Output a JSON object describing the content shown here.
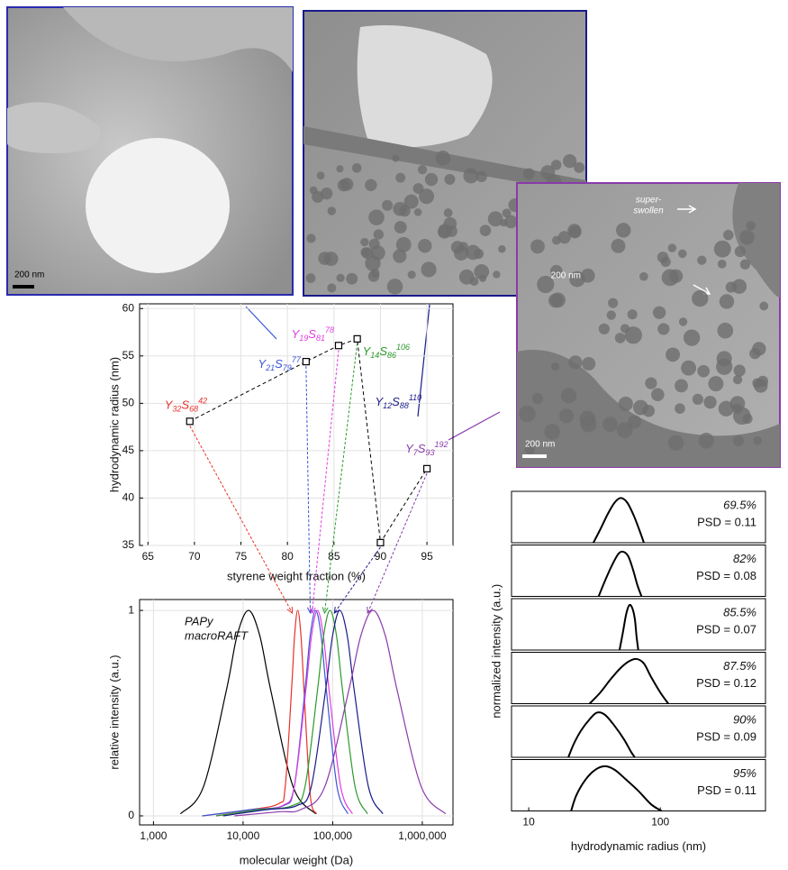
{
  "micrographs": [
    {
      "scale_bar": "200 nm"
    },
    {
      "scale_bar": "200 nm"
    },
    {
      "scale_bar": "200 nm",
      "annotation": [
        "super-",
        "swollen"
      ]
    }
  ],
  "chart_data": [
    {
      "type": "scatter",
      "xlabel": "styrene weight fraction (%)",
      "ylabel": "hydrodynamic radius (nm)",
      "x": [
        69.5,
        82,
        85.5,
        87.5,
        90,
        95
      ],
      "values": [
        48.1,
        54.4,
        56.1,
        56.8,
        35.3,
        43.1
      ],
      "point_labels": [
        [
          "Y",
          "32",
          "S",
          "68",
          "42"
        ],
        [
          "Y",
          "21",
          "S",
          "79",
          "77"
        ],
        [
          "Y",
          "19",
          "S",
          "81",
          "78"
        ],
        [
          "Y",
          "14",
          "S",
          "86",
          "106"
        ],
        [
          "Y",
          "12",
          "S",
          "88",
          "110"
        ],
        [
          "Y",
          "7",
          "S",
          "93",
          "192"
        ]
      ],
      "label_colors": [
        "#e8312a",
        "#3a55d6",
        "#e03ce0",
        "#2a9a2a",
        "#1a1a8a",
        "#8a3aaa"
      ],
      "color": "#000000",
      "xlim": [
        64.1,
        97.8
      ],
      "xticks": [
        65,
        70,
        75,
        80,
        85,
        90,
        95
      ],
      "ylim": [
        35,
        60.5
      ],
      "yticks": [
        35,
        40,
        45,
        50,
        55,
        60
      ],
      "grid": true
    },
    {
      "type": "line",
      "log_x": true,
      "xlabel": "molecular weight (Da)",
      "ylabel": "relative intensity (a.u.)",
      "annotation": [
        "PAPy",
        "macroRAFT"
      ],
      "xlim": [
        700,
        2200000
      ],
      "xticks": [
        {
          "value": 1000,
          "label": "1,000"
        },
        {
          "value": 10000,
          "label": "10,000"
        },
        {
          "value": 100000,
          "label": "100,000"
        },
        {
          "value": 1000000,
          "label": "1,000,000"
        }
      ],
      "ylim": [
        -0.044,
        1.053
      ],
      "yticks": [
        0,
        1
      ],
      "grid": true,
      "series": [
        {
          "color": "#000000",
          "x": [
            2000,
            3600,
            6500,
            8600,
            11500,
            15300,
            20400,
            36300,
            64600
          ],
          "values": [
            0.01,
            0.14,
            0.61,
            0.88,
            1,
            0.88,
            0.61,
            0.14,
            0.01
          ]
        },
        {
          "color": "#e8312a",
          "x": [
            3500,
            12000,
            25100,
            29500,
            34700,
            37600,
            40700,
            44200,
            47900,
            56200,
            66100
          ],
          "values": [
            0,
            0.03,
            0.06,
            0.14,
            0.61,
            0.88,
            1,
            0.88,
            0.61,
            0.1,
            0.01
          ]
        },
        {
          "color": "#3a55d6",
          "x": [
            3500,
            12000,
            28200,
            37200,
            49000,
            56200,
            64600,
            74100,
            85100,
            112000,
            148000
          ],
          "values": [
            0,
            0.03,
            0.05,
            0.14,
            0.61,
            0.88,
            1,
            0.88,
            0.61,
            0.14,
            0.01
          ]
        },
        {
          "color": "#e03ce0",
          "x": [
            5000,
            15000,
            27500,
            37200,
            50100,
            58200,
            67600,
            78500,
            91200,
            123000,
            166000
          ],
          "values": [
            0,
            0.03,
            0.05,
            0.14,
            0.61,
            0.88,
            1,
            0.88,
            0.61,
            0.14,
            0.01
          ]
        },
        {
          "color": "#2a9a2a",
          "x": [
            5000,
            15000,
            35500,
            49000,
            67600,
            79400,
            93300,
            110000,
            129000,
            178000,
            245000
          ],
          "values": [
            0,
            0.03,
            0.05,
            0.14,
            0.61,
            0.88,
            1,
            0.88,
            0.61,
            0.14,
            0.01
          ]
        },
        {
          "color": "#1a1a8a",
          "x": [
            6000,
            18000,
            39800,
            57500,
            83200,
            100000,
            120000,
            145000,
            174000,
            251000,
            363000
          ],
          "values": [
            0,
            0.03,
            0.05,
            0.14,
            0.61,
            0.88,
            1,
            0.88,
            0.61,
            0.14,
            0.01
          ]
        },
        {
          "color": "#8a3aaa",
          "x": [
            8000,
            25000,
            43700,
            81300,
            151000,
            207000,
            282000,
            385000,
            525000,
            977000,
            1820000
          ],
          "values": [
            0,
            0.02,
            0.03,
            0.14,
            0.61,
            0.88,
            1,
            0.88,
            0.61,
            0.14,
            0.01
          ]
        }
      ]
    },
    {
      "type": "panels",
      "log_x": true,
      "xlabel": "hydrodynamic radius (nm)",
      "ylabel": "normalized intensity (a.u.)",
      "xlim": [
        7.4,
        630
      ],
      "xticks": [
        10,
        100
      ],
      "ylim": [
        0,
        1.15
      ],
      "color": "#000000",
      "panels": [
        {
          "annotation": [
            "69.5%",
            "PSD = 0.11"
          ],
          "x": [
            31,
            35,
            40,
            45,
            50,
            56,
            63,
            70,
            75
          ],
          "values": [
            0,
            0.3,
            0.65,
            0.9,
            1,
            0.9,
            0.6,
            0.25,
            0
          ]
        },
        {
          "annotation": [
            "82%",
            "PSD = 0.08"
          ],
          "x": [
            34,
            38,
            43,
            48,
            52,
            57,
            62,
            67,
            72
          ],
          "values": [
            0,
            0.35,
            0.7,
            0.95,
            1,
            0.9,
            0.6,
            0.25,
            0
          ]
        },
        {
          "annotation": [
            "85.5%",
            "PSD = 0.07"
          ],
          "x": [
            49,
            52,
            55,
            58,
            61,
            64,
            66,
            68
          ],
          "values": [
            0,
            0.4,
            0.8,
            1,
            0.95,
            0.7,
            0.3,
            0
          ]
        },
        {
          "annotation": [
            "87.5%",
            "PSD = 0.12"
          ],
          "x": [
            29,
            35,
            42,
            50,
            58,
            66,
            75,
            85,
            100,
            115
          ],
          "values": [
            0,
            0.25,
            0.55,
            0.8,
            0.95,
            1,
            0.9,
            0.6,
            0.25,
            0
          ]
        },
        {
          "annotation": [
            "90%",
            "PSD = 0.09"
          ],
          "x": [
            20,
            22,
            25,
            29,
            33,
            38,
            45,
            53,
            60,
            64
          ],
          "values": [
            0,
            0.3,
            0.6,
            0.85,
            1,
            0.95,
            0.7,
            0.4,
            0.12,
            0
          ]
        },
        {
          "annotation": [
            "95%",
            "PSD = 0.11"
          ],
          "x": [
            21,
            23,
            27,
            32,
            38,
            45,
            55,
            68,
            85,
            102
          ],
          "values": [
            0,
            0.35,
            0.7,
            0.92,
            1,
            0.92,
            0.7,
            0.45,
            0.15,
            0
          ]
        }
      ]
    }
  ]
}
